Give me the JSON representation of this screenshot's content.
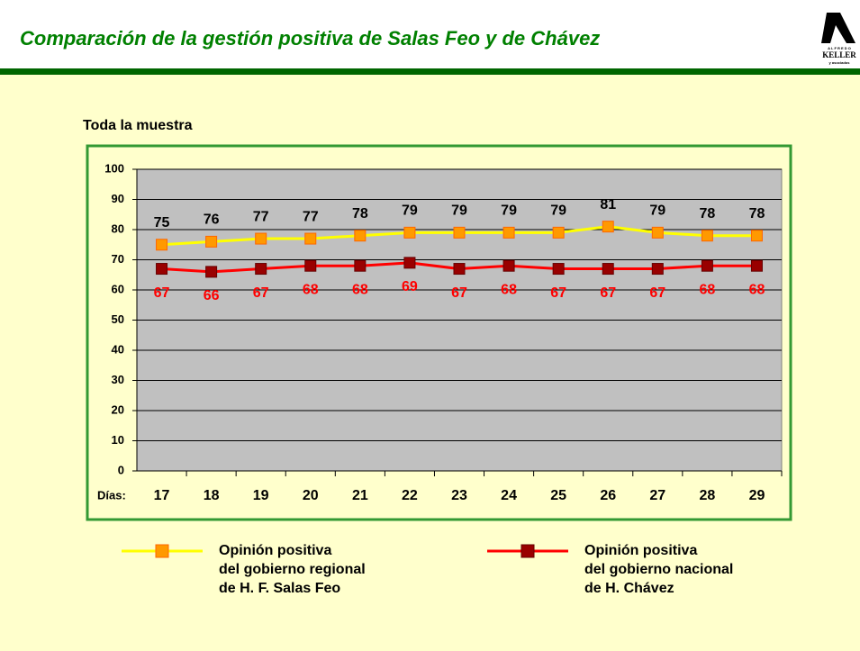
{
  "header": {
    "title": "Comparación de la gestión positiva de Salas Feo y de Chávez",
    "logo": {
      "line1": "A L F R E D O",
      "line2": "KELLER",
      "line3": "y asociados"
    }
  },
  "chart_data": {
    "type": "line",
    "title": "Toda la muestra",
    "x_label": "Días:",
    "categories": [
      "17",
      "18",
      "19",
      "20",
      "21",
      "22",
      "23",
      "24",
      "25",
      "26",
      "27",
      "28",
      "29"
    ],
    "series": [
      {
        "name": "Opinión positiva\ndel gobierno regional\nde H. F. Salas Feo",
        "color": "#FFFF00",
        "marker_color": "#FF9900",
        "label_color": "#000000",
        "values": [
          75,
          76,
          77,
          77,
          78,
          79,
          79,
          79,
          79,
          81,
          79,
          78,
          78
        ]
      },
      {
        "name": "Opinión positiva\ndel gobierno nacional\nde H. Chávez",
        "color": "#FF0000",
        "marker_color": "#990000",
        "label_color": "#FF0000",
        "values": [
          67,
          66,
          67,
          68,
          68,
          69,
          67,
          68,
          67,
          67,
          67,
          68,
          68
        ]
      }
    ],
    "ylim": [
      0,
      100
    ],
    "yticks": [
      0,
      10,
      20,
      30,
      40,
      50,
      60,
      70,
      80,
      90,
      100
    ],
    "grid": true,
    "legend": "bottom"
  }
}
